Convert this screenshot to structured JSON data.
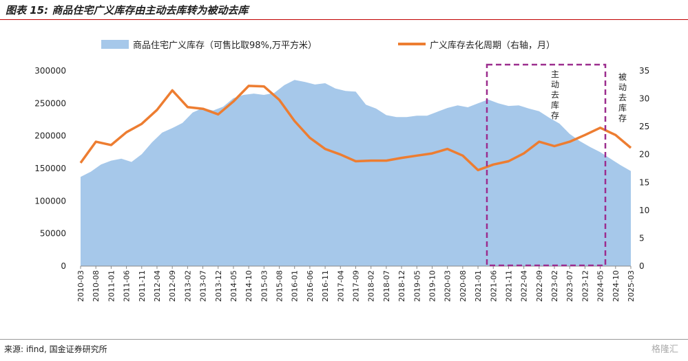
{
  "header": {
    "title": "图表 15: 商品住宅广义库存由主动去库转为被动去库"
  },
  "footer": {
    "source": "来源: ifind, 国金证券研究所",
    "watermark": "格隆汇"
  },
  "chart_data": {
    "type": "area+line",
    "legend": {
      "area": "商品住宅广义库存（可售比取98%,万平方米）",
      "line": "广义库存去化周期（右轴，月）",
      "placement": "top-center"
    },
    "y_left": {
      "ticks": [
        "0",
        "50000",
        "100000",
        "150000",
        "200000",
        "250000",
        "300000"
      ],
      "ylim": [
        0,
        300000
      ]
    },
    "y_right": {
      "ticks": [
        "0",
        "5",
        "10",
        "15",
        "20",
        "25",
        "30",
        "35"
      ],
      "ylim": [
        0,
        35
      ]
    },
    "x_ticks": [
      "2010-03",
      "2010-08",
      "2011-01",
      "2011-06",
      "2011-11",
      "2012-04",
      "2012-09",
      "2013-02",
      "2013-07",
      "2013-12",
      "2014-05",
      "2014-10",
      "2015-03",
      "2015-08",
      "2016-01",
      "2016-06",
      "2016-11",
      "2017-04",
      "2017-09",
      "2018-02",
      "2018-07",
      "2018-12",
      "2019-05",
      "2019-10",
      "2020-03",
      "2020-08",
      "2021-01",
      "2021-06",
      "2021-11",
      "2022-04",
      "2022-09",
      "2023-02",
      "2023-07",
      "2023-12",
      "2024-05",
      "2024-10",
      "2025-03"
    ],
    "series": [
      {
        "name": "商品住宅广义库存（可售比取98%,万平方米）",
        "type": "area",
        "axis": "left",
        "color": "#a6c8ea",
        "values": [
          137000,
          145000,
          156000,
          162000,
          165000,
          160000,
          172000,
          190000,
          205000,
          212000,
          220000,
          236000,
          243000,
          239000,
          245000,
          258000,
          263000,
          265000,
          263000,
          266000,
          278000,
          286000,
          283000,
          279000,
          281000,
          273000,
          269000,
          268000,
          248000,
          242000,
          232000,
          229000,
          229000,
          231000,
          231000,
          237000,
          243000,
          247000,
          244000,
          250000,
          256000,
          250000,
          246000,
          247000,
          242000,
          238000,
          228000,
          219000,
          203000,
          192000,
          183000,
          175000,
          165000,
          155000,
          146000
        ]
      },
      {
        "name": "广义库存去化周期（右轴，月）",
        "type": "line",
        "axis": "right",
        "color": "#ed7d31",
        "values": [
          18.5,
          22.3,
          21.7,
          24.0,
          25.5,
          28.0,
          31.5,
          28.5,
          28.2,
          27.2,
          29.5,
          32.3,
          32.2,
          29.8,
          26.0,
          23.0,
          21.0,
          20.0,
          18.8,
          18.9,
          18.9,
          19.4,
          19.8,
          20.2,
          21.0,
          19.8,
          17.2,
          18.2,
          18.8,
          20.2,
          22.3,
          21.5,
          22.3,
          23.5,
          24.8,
          23.5,
          21.2
        ]
      }
    ],
    "annotations": [
      {
        "text": "主动去库存",
        "type": "dashed-box",
        "color": "#9b2d8e",
        "x_from": "2021-06",
        "x_to": "2024-05"
      },
      {
        "text": "被动去库存",
        "color": "#222222"
      }
    ]
  }
}
